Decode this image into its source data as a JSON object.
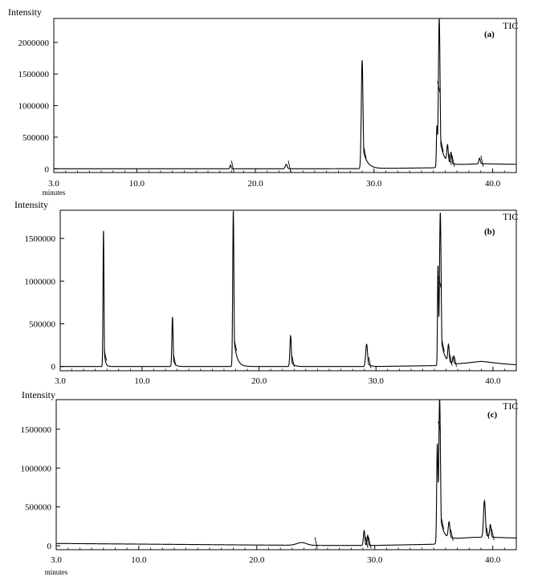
{
  "chart_data": [
    {
      "type": "line",
      "panel_label": "(a)",
      "trace_label": "TIC",
      "ylabel": "Intensity",
      "xlabel": "minutes",
      "xlim": [
        3.0,
        42.0
      ],
      "ylim": [
        -60000,
        2380000
      ],
      "x_ticks": [
        3.0,
        10.0,
        20.0,
        30.0,
        40.0
      ],
      "x_tick_labels": [
        "3.0",
        "10.0",
        "20.0",
        "30.0",
        "40.0"
      ],
      "y_ticks": [
        0,
        500000,
        1000000,
        1500000,
        2000000
      ],
      "y_tick_labels": [
        "0",
        "500000",
        "1000000",
        "1500000",
        "2000000"
      ],
      "series": [
        {
          "baseline": [
            [
              3.0,
              0
            ],
            [
              18.0,
              0
            ],
            [
              26.0,
              0
            ],
            [
              29.0,
              2000
            ],
            [
              32.0,
              8000
            ],
            [
              35.0,
              15000
            ],
            [
              36.5,
              60000
            ],
            [
              39.0,
              80000
            ],
            [
              42.0,
              70000
            ]
          ],
          "peaks": [
            {
              "rt": 17.9,
              "height": 60000,
              "width": 0.05
            },
            {
              "rt": 22.6,
              "height": 70000,
              "width": 0.08
            },
            {
              "rt": 29.0,
              "height": 1720000,
              "width": 0.07,
              "tail": 0.35
            },
            {
              "rt": 35.3,
              "height": 620000,
              "width": 0.04
            },
            {
              "rt": 35.5,
              "height": 2350000,
              "width": 0.07,
              "tail": 0.35
            },
            {
              "rt": 36.2,
              "height": 260000,
              "width": 0.06
            },
            {
              "rt": 36.5,
              "height": 170000,
              "width": 0.05
            },
            {
              "rt": 38.9,
              "height": 90000,
              "width": 0.06
            }
          ]
        }
      ]
    },
    {
      "type": "line",
      "panel_label": "(b)",
      "trace_label": "TIC",
      "ylabel": "Intensity",
      "xlim": [
        3.0,
        42.0
      ],
      "ylim": [
        -50000,
        1830000
      ],
      "x_ticks": [
        3.0,
        10.0,
        20.0,
        30.0,
        40.0
      ],
      "x_tick_labels": [
        "3.0",
        "10.0",
        "20.0",
        "30.0",
        "40.0"
      ],
      "y_ticks": [
        0,
        500000,
        1000000,
        1500000
      ],
      "y_tick_labels": [
        "0",
        "500000",
        "1000000",
        "1500000"
      ],
      "series": [
        {
          "baseline": [
            [
              3.0,
              0
            ],
            [
              30.0,
              0
            ],
            [
              35.0,
              10000
            ],
            [
              37.0,
              30000
            ],
            [
              39.0,
              60000
            ],
            [
              41.0,
              30000
            ],
            [
              42.0,
              20000
            ]
          ],
          "peaks": [
            {
              "rt": 6.7,
              "height": 1600000,
              "width": 0.04,
              "tail": 0.1
            },
            {
              "rt": 12.6,
              "height": 580000,
              "width": 0.05,
              "tail": 0.15
            },
            {
              "rt": 17.8,
              "height": 1830000,
              "width": 0.05,
              "tail": 0.25
            },
            {
              "rt": 22.7,
              "height": 360000,
              "width": 0.06,
              "tail": 0.2
            },
            {
              "rt": 29.2,
              "height": 260000,
              "width": 0.08,
              "tail": 0.2
            },
            {
              "rt": 35.3,
              "height": 1150000,
              "width": 0.04
            },
            {
              "rt": 35.5,
              "height": 1790000,
              "width": 0.07,
              "tail": 0.3
            },
            {
              "rt": 36.2,
              "height": 200000,
              "width": 0.06
            },
            {
              "rt": 36.6,
              "height": 80000,
              "width": 0.05
            }
          ]
        }
      ]
    },
    {
      "type": "line",
      "panel_label": "(c)",
      "trace_label": "TIC",
      "ylabel": "Intensity",
      "xlabel": "minutes",
      "xlim": [
        3.0,
        42.0
      ],
      "ylim": [
        -50000,
        1880000
      ],
      "x_ticks": [
        3.0,
        10.0,
        20.0,
        30.0,
        40.0
      ],
      "x_tick_labels": [
        "3.0",
        "10.0",
        "20.0",
        "30.0",
        "40.0"
      ],
      "y_ticks": [
        0,
        500000,
        1000000,
        1500000
      ],
      "y_tick_labels": [
        "0",
        "500000",
        "1000000",
        "1500000"
      ],
      "series": [
        {
          "baseline": [
            [
              3.0,
              30000
            ],
            [
              10.0,
              22000
            ],
            [
              20.0,
              10000
            ],
            [
              26.0,
              5000
            ],
            [
              30.0,
              5000
            ],
            [
              35.0,
              20000
            ],
            [
              36.5,
              90000
            ],
            [
              38.5,
              110000
            ],
            [
              40.0,
              110000
            ],
            [
              42.0,
              100000
            ]
          ],
          "peaks": [
            {
              "rt": 23.8,
              "height": 35000,
              "width": 0.4
            },
            {
              "rt": 29.1,
              "height": 190000,
              "width": 0.06
            },
            {
              "rt": 29.4,
              "height": 130000,
              "width": 0.05
            },
            {
              "rt": 35.3,
              "height": 1250000,
              "width": 0.05
            },
            {
              "rt": 35.5,
              "height": 1860000,
              "width": 0.07,
              "tail": 0.3
            },
            {
              "rt": 36.3,
              "height": 200000,
              "width": 0.07
            },
            {
              "rt": 39.3,
              "height": 470000,
              "width": 0.08,
              "tail": 0.15
            },
            {
              "rt": 39.8,
              "height": 160000,
              "width": 0.06
            }
          ]
        }
      ]
    }
  ]
}
